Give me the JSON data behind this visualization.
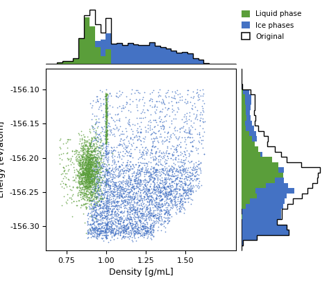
{
  "xlabel": "Density [g/mL]",
  "ylabel": "Energy [eV/atom]",
  "liquid_color": "#5a9e3a",
  "ice_color": "#4472c4",
  "xlim": [
    0.62,
    1.82
  ],
  "energy_ylim": [
    -156.335,
    -156.07
  ],
  "yticks": [
    -156.3,
    -156.25,
    -156.2,
    -156.15,
    -156.1
  ],
  "xticks": [
    0.75,
    1.0,
    1.25,
    1.5
  ],
  "dot_size": 1.5,
  "dot_alpha": 0.8
}
